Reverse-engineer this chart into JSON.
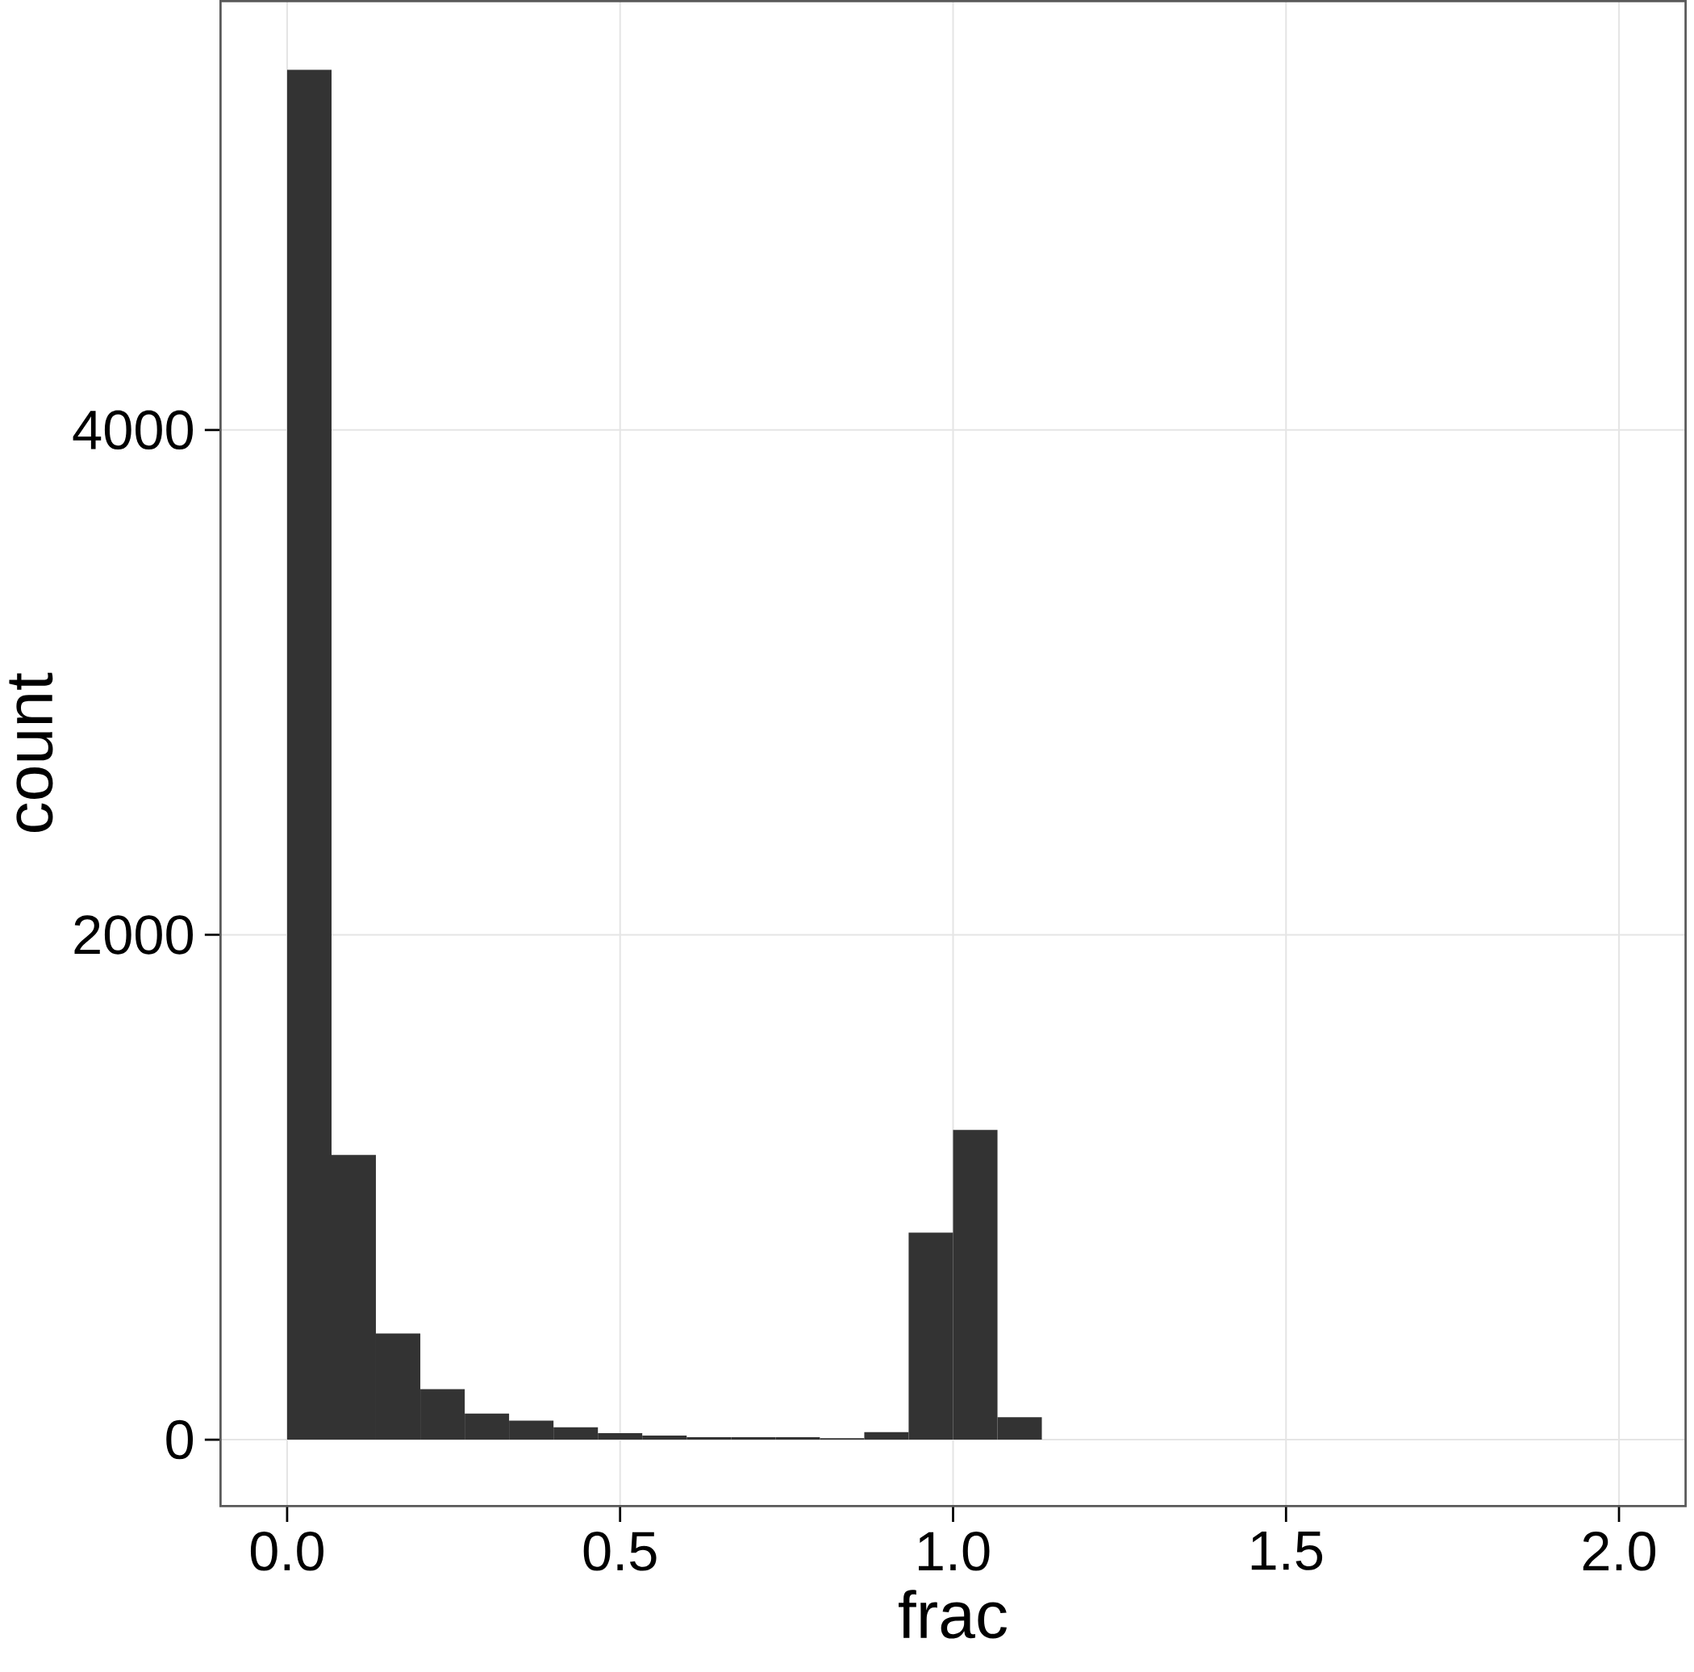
{
  "chart_data": {
    "type": "histogram",
    "xlabel": "frac",
    "ylabel": "count",
    "bins": [
      0,
      0.0667,
      0.1333,
      0.2,
      0.2667,
      0.3333,
      0.4,
      0.4667,
      0.5333,
      0.6,
      0.6667,
      0.7333,
      0.8,
      0.8667,
      0.9333,
      1.0,
      1.0667,
      1.1333
    ],
    "values": [
      5427,
      1128,
      421,
      200,
      103,
      75,
      49,
      26,
      16,
      10,
      10,
      10,
      6,
      30,
      820,
      1227,
      89
    ],
    "color": "#333333",
    "xlim": [
      -0.1,
      2.1
    ],
    "ylim": [
      -263,
      5699
    ],
    "xticks": [
      {
        "value": 0,
        "label": "0.0"
      },
      {
        "value": 0.5,
        "label": "0.5"
      },
      {
        "value": 1,
        "label": "1.0"
      },
      {
        "value": 1.5,
        "label": "1.5"
      },
      {
        "value": 2,
        "label": "2.0"
      }
    ],
    "yticks": [
      0,
      2000,
      4000
    ],
    "grid": true
  }
}
